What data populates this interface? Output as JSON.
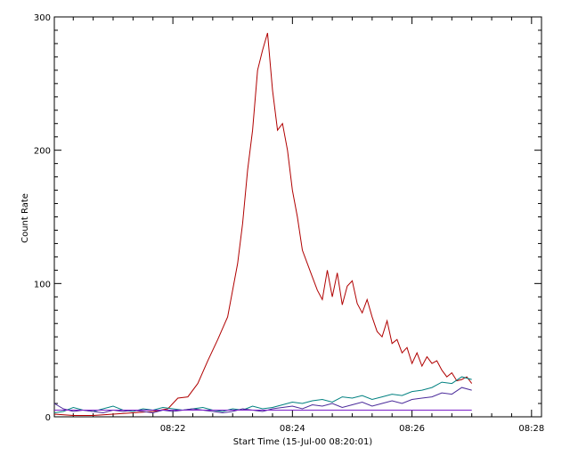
{
  "chart_data": {
    "type": "line",
    "xlabel": "Start Time (15-Jul-00 08:20:01)",
    "ylabel": "Count Rate",
    "x_unit": "time of day (HH:MM), 15-Jul-00",
    "xlim": [
      "08:20:01",
      "08:28:10"
    ],
    "ylim": [
      0,
      300
    ],
    "x_ticks": [
      "08:22",
      "08:24",
      "08:26",
      "08:28"
    ],
    "y_ticks": [
      0,
      100,
      200,
      300
    ],
    "grid": false,
    "legend": "none",
    "series": [
      {
        "color": "#b00000",
        "x": [
          "08:20:01",
          "08:20:20",
          "08:20:40",
          "08:21:00",
          "08:21:20",
          "08:21:40",
          "08:21:55",
          "08:22:05",
          "08:22:15",
          "08:22:25",
          "08:22:35",
          "08:22:45",
          "08:22:55",
          "08:23:05",
          "08:23:10",
          "08:23:15",
          "08:23:20",
          "08:23:25",
          "08:23:30",
          "08:23:35",
          "08:23:40",
          "08:23:45",
          "08:23:50",
          "08:23:55",
          "08:24:00",
          "08:24:05",
          "08:24:10",
          "08:24:15",
          "08:24:20",
          "08:24:25",
          "08:24:30",
          "08:24:35",
          "08:24:40",
          "08:24:45",
          "08:24:50",
          "08:24:55",
          "08:25:00",
          "08:25:05",
          "08:25:10",
          "08:25:15",
          "08:25:20",
          "08:25:25",
          "08:25:30",
          "08:25:35",
          "08:25:40",
          "08:25:45",
          "08:25:50",
          "08:25:55",
          "08:26:00",
          "08:26:05",
          "08:26:10",
          "08:26:15",
          "08:26:20",
          "08:26:25",
          "08:26:30",
          "08:26:35",
          "08:26:40",
          "08:26:45",
          "08:26:50",
          "08:26:55",
          "08:27:00"
        ],
        "values": [
          2,
          1,
          1,
          2,
          3,
          4,
          6,
          14,
          15,
          25,
          42,
          58,
          75,
          115,
          145,
          185,
          215,
          260,
          275,
          288,
          245,
          215,
          220,
          200,
          170,
          150,
          125,
          115,
          105,
          95,
          88,
          110,
          90,
          108,
          84,
          98,
          102,
          85,
          78,
          88,
          75,
          64,
          60,
          72,
          55,
          58,
          48,
          52,
          40,
          48,
          38,
          45,
          40,
          42,
          35,
          30,
          33,
          27,
          28,
          30,
          25
        ]
      },
      {
        "color": "#008080",
        "x": [
          "08:20:01",
          "08:20:10",
          "08:20:20",
          "08:20:30",
          "08:20:40",
          "08:20:50",
          "08:21:00",
          "08:21:10",
          "08:21:20",
          "08:21:30",
          "08:21:40",
          "08:21:50",
          "08:22:00",
          "08:22:10",
          "08:22:20",
          "08:22:30",
          "08:22:40",
          "08:22:50",
          "08:23:00",
          "08:23:10",
          "08:23:20",
          "08:23:30",
          "08:23:40",
          "08:23:50",
          "08:24:00",
          "08:24:10",
          "08:24:20",
          "08:24:30",
          "08:24:40",
          "08:24:50",
          "08:25:00",
          "08:25:10",
          "08:25:20",
          "08:25:30",
          "08:25:40",
          "08:25:50",
          "08:26:00",
          "08:26:10",
          "08:26:20",
          "08:26:30",
          "08:26:40",
          "08:26:50",
          "08:27:00"
        ],
        "values": [
          3,
          4,
          7,
          5,
          4,
          6,
          8,
          5,
          4,
          6,
          5,
          7,
          6,
          5,
          6,
          7,
          5,
          4,
          6,
          5,
          8,
          6,
          7,
          9,
          11,
          10,
          12,
          13,
          11,
          15,
          14,
          16,
          13,
          15,
          17,
          16,
          19,
          20,
          22,
          26,
          25,
          30,
          28
        ]
      },
      {
        "color": "#4a2a9a",
        "x": [
          "08:20:01",
          "08:20:10",
          "08:20:20",
          "08:20:30",
          "08:20:40",
          "08:20:50",
          "08:21:00",
          "08:21:10",
          "08:21:20",
          "08:21:30",
          "08:21:40",
          "08:21:50",
          "08:22:00",
          "08:22:10",
          "08:22:20",
          "08:22:30",
          "08:22:40",
          "08:22:50",
          "08:23:00",
          "08:23:10",
          "08:23:20",
          "08:23:30",
          "08:23:40",
          "08:23:50",
          "08:24:00",
          "08:24:10",
          "08:24:20",
          "08:24:30",
          "08:24:40",
          "08:24:50",
          "08:25:00",
          "08:25:10",
          "08:25:20",
          "08:25:30",
          "08:25:40",
          "08:25:50",
          "08:26:00",
          "08:26:10",
          "08:26:20",
          "08:26:30",
          "08:26:40",
          "08:26:50",
          "08:27:00"
        ],
        "values": [
          10,
          6,
          4,
          5,
          4,
          3,
          5,
          4,
          5,
          4,
          3,
          5,
          4,
          5,
          6,
          5,
          4,
          3,
          4,
          6,
          5,
          4,
          6,
          7,
          8,
          6,
          9,
          8,
          10,
          7,
          9,
          11,
          8,
          10,
          12,
          10,
          13,
          14,
          15,
          18,
          17,
          22,
          20
        ]
      },
      {
        "color": "#7a1ec8",
        "x": [
          "08:20:01",
          "08:20:30",
          "08:21:00",
          "08:21:30",
          "08:22:00",
          "08:22:30",
          "08:23:00",
          "08:23:30",
          "08:24:00",
          "08:24:30",
          "08:25:00",
          "08:25:30",
          "08:26:00",
          "08:26:30",
          "08:27:00"
        ],
        "values": [
          5,
          5,
          5,
          5,
          5,
          5,
          5,
          5,
          5,
          5,
          5,
          5,
          5,
          5,
          5
        ]
      }
    ]
  }
}
